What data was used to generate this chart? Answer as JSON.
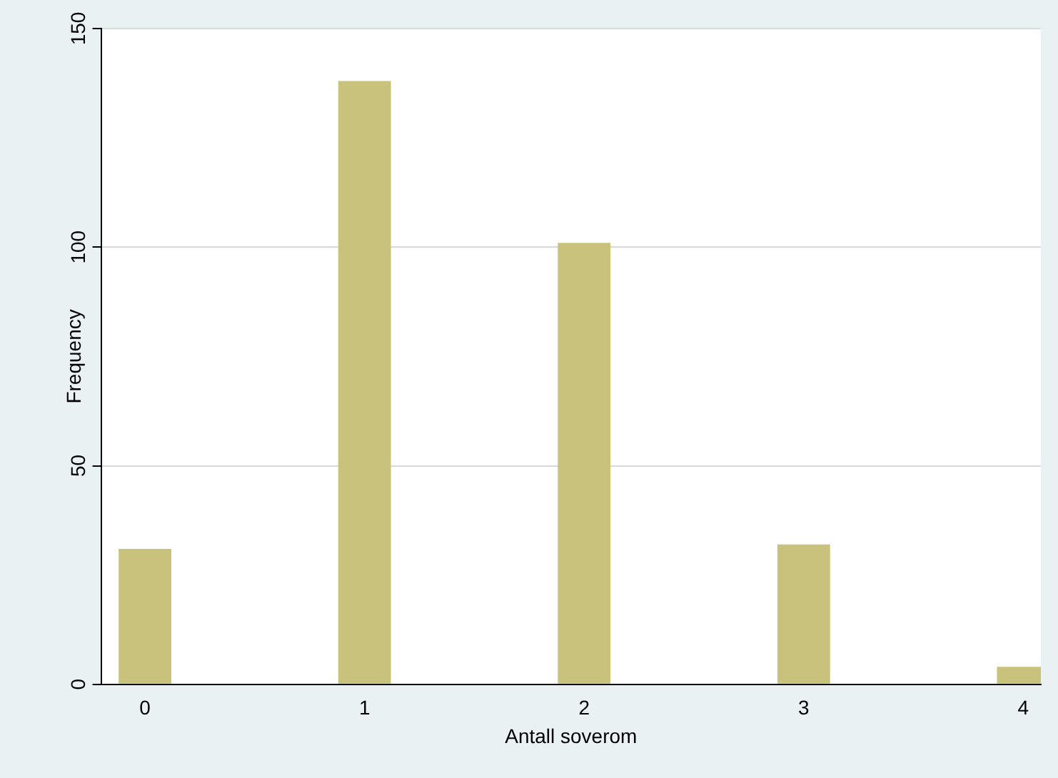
{
  "chart_data": {
    "type": "bar",
    "xlabel": "Antall soverom",
    "ylabel": "Frequency",
    "x": [
      0,
      1,
      2,
      3,
      4
    ],
    "values": [
      31,
      138,
      101,
      32,
      4
    ],
    "color": "#c9c27c",
    "xlim": [
      -0.2,
      4.08
    ],
    "xticks": [
      0,
      1,
      2,
      3,
      4
    ],
    "ylim": [
      0,
      150
    ],
    "yticks": [
      0,
      50,
      100,
      150
    ],
    "grid": "y",
    "legend": false
  }
}
